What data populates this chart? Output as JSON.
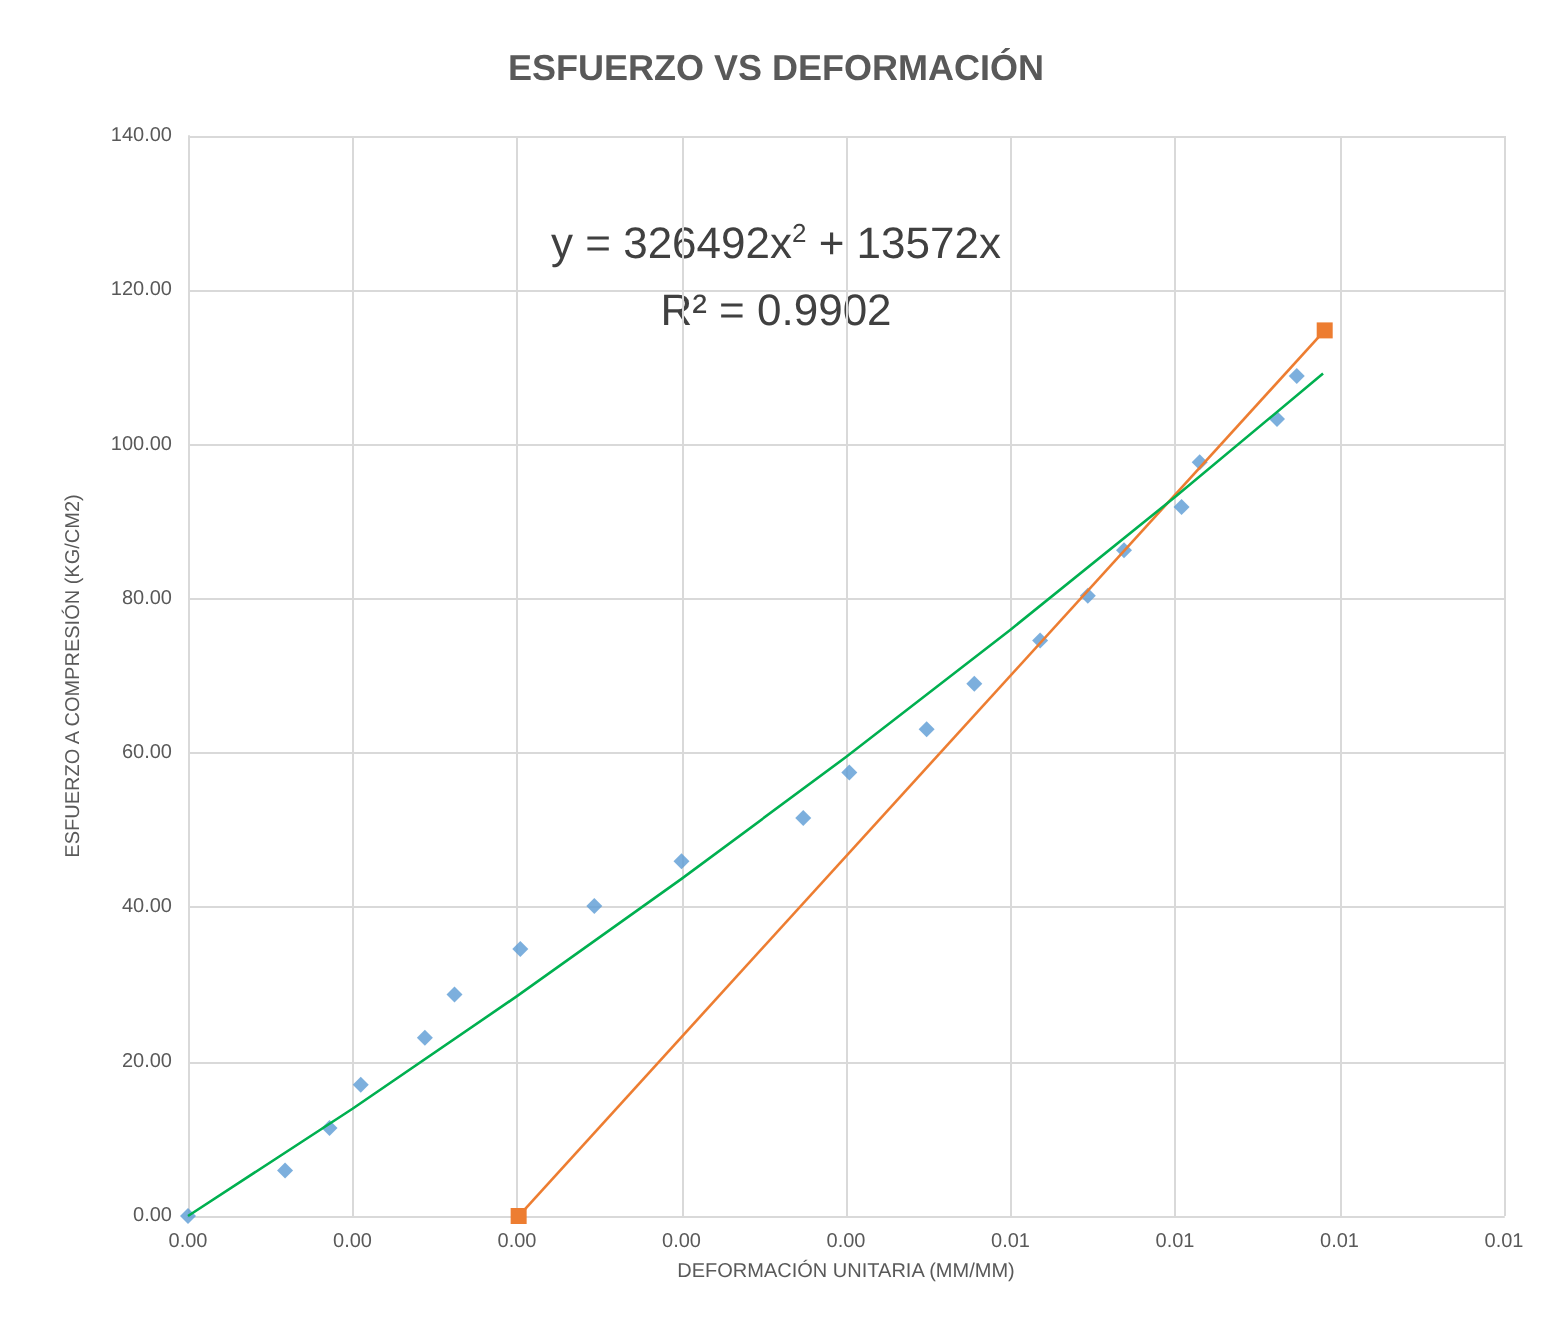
{
  "chart_data": {
    "type": "scatter",
    "title": "ESFUERZO VS DEFORMACIÓN",
    "xlabel": "DEFORMACIÓN UNITARIA (MM/MM)",
    "ylabel": "ESFUERZO A COMPRESIÓN (KG/CM2)",
    "annotations": [
      "y = 326492x$^{2}$ + 13572x",
      "R² = 0.9902"
    ],
    "series": [
      {
        "marker": "diamond",
        "color": "#5b9bd5",
        "x": [
          0,
          0.00059,
          0.00086,
          0.00105,
          0.00144,
          0.00162,
          0.00202,
          0.00247,
          0.003,
          0.00374,
          0.00402,
          0.00449,
          0.00478,
          0.00518,
          0.00547,
          0.00569,
          0.00604,
          0.00615,
          0.00662,
          0.00674
        ],
        "values": [
          0,
          5.9,
          11.4,
          17.0,
          23.1,
          28.7,
          34.6,
          40.2,
          46.0,
          51.6,
          57.5,
          63.1,
          69.0,
          74.6,
          80.4,
          86.3,
          91.9,
          97.7,
          103.3,
          108.9
        ]
      },
      {
        "type": "line",
        "marker": "square",
        "color": "#ed7d31",
        "x": [
          0.00201,
          0.00691
        ],
        "values": [
          0,
          114.8
        ]
      },
      {
        "type": "line",
        "marker": "none",
        "color": "#00b050",
        "x": [
          0,
          0.001,
          0.002,
          0.003,
          0.004,
          0.005,
          0.006,
          0.0069
        ],
        "values": [
          0,
          13.9,
          28.5,
          43.7,
          59.5,
          76.0,
          93.2,
          109.2
        ]
      }
    ],
    "xlim": [
      0,
      0.008
    ],
    "xticks": [
      {
        "value": 0,
        "label": "0.00"
      },
      {
        "value": 0.001,
        "label": "0.00"
      },
      {
        "value": 0.002,
        "label": "0.00"
      },
      {
        "value": 0.003,
        "label": "0.00"
      },
      {
        "value": 0.004,
        "label": "0.00"
      },
      {
        "value": 0.005,
        "label": "0.01"
      },
      {
        "value": 0.006,
        "label": "0.01"
      },
      {
        "value": 0.007,
        "label": "0.01"
      },
      {
        "value": 0.008,
        "label": "0.01"
      }
    ],
    "ylim": [
      0,
      140
    ],
    "yticks": [
      {
        "value": 0,
        "label": "0.00"
      },
      {
        "value": 20,
        "label": "20.00"
      },
      {
        "value": 40,
        "label": "40.00"
      },
      {
        "value": 60,
        "label": "60.00"
      },
      {
        "value": 80,
        "label": "80.00"
      },
      {
        "value": 100,
        "label": "100.00"
      },
      {
        "value": 120,
        "label": "120.00"
      },
      {
        "value": 140,
        "label": "140.00"
      }
    ],
    "grid": true
  }
}
